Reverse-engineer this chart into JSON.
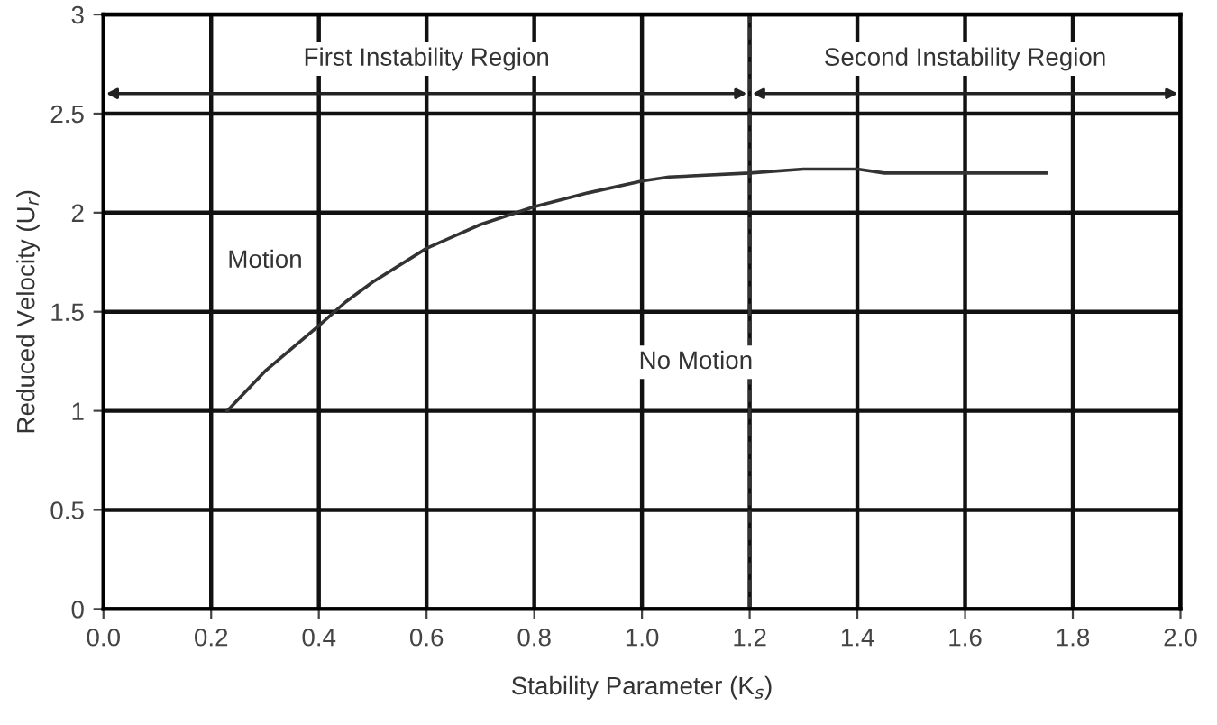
{
  "chart_data": {
    "type": "line",
    "xlabel": "Stability Parameter (K$_{s}$)",
    "ylabel": "Reduced Velocity (U$_{r}$)",
    "x": [
      0.23,
      0.3,
      0.4,
      0.45,
      0.5,
      0.6,
      0.7,
      0.8,
      0.9,
      1.0,
      1.05,
      1.2,
      1.3,
      1.4,
      1.45,
      1.75
    ],
    "series": [
      {
        "color": "#333333",
        "values": [
          1.0,
          1.2,
          1.43,
          1.55,
          1.65,
          1.82,
          1.94,
          2.03,
          2.1,
          2.16,
          2.18,
          2.2,
          2.22,
          2.22,
          2.2,
          2.2
        ]
      }
    ],
    "xlim": [
      0.0,
      2.0
    ],
    "xticks": [
      {
        "value": 0,
        "label": "0.0"
      },
      0.2,
      0.4,
      0.6,
      0.8,
      {
        "value": 1,
        "label": "1.0"
      },
      1.2,
      1.4,
      1.6,
      1.8,
      {
        "value": 2,
        "label": "2.0"
      }
    ],
    "ylim": [
      0,
      3
    ],
    "yticks": [
      0,
      0.5,
      1,
      1.5,
      2,
      2.5,
      3
    ],
    "grid": true,
    "line_style": "solid",
    "marker": "none",
    "ref_lines": [
      {
        "axis": "x",
        "value": 1.2,
        "label": null,
        "color": "#333333",
        "line_style": "dashed"
      }
    ],
    "annotations": [
      "First Instability Region",
      "Second Instability Region",
      "Motion",
      "No Motion"
    ]
  }
}
